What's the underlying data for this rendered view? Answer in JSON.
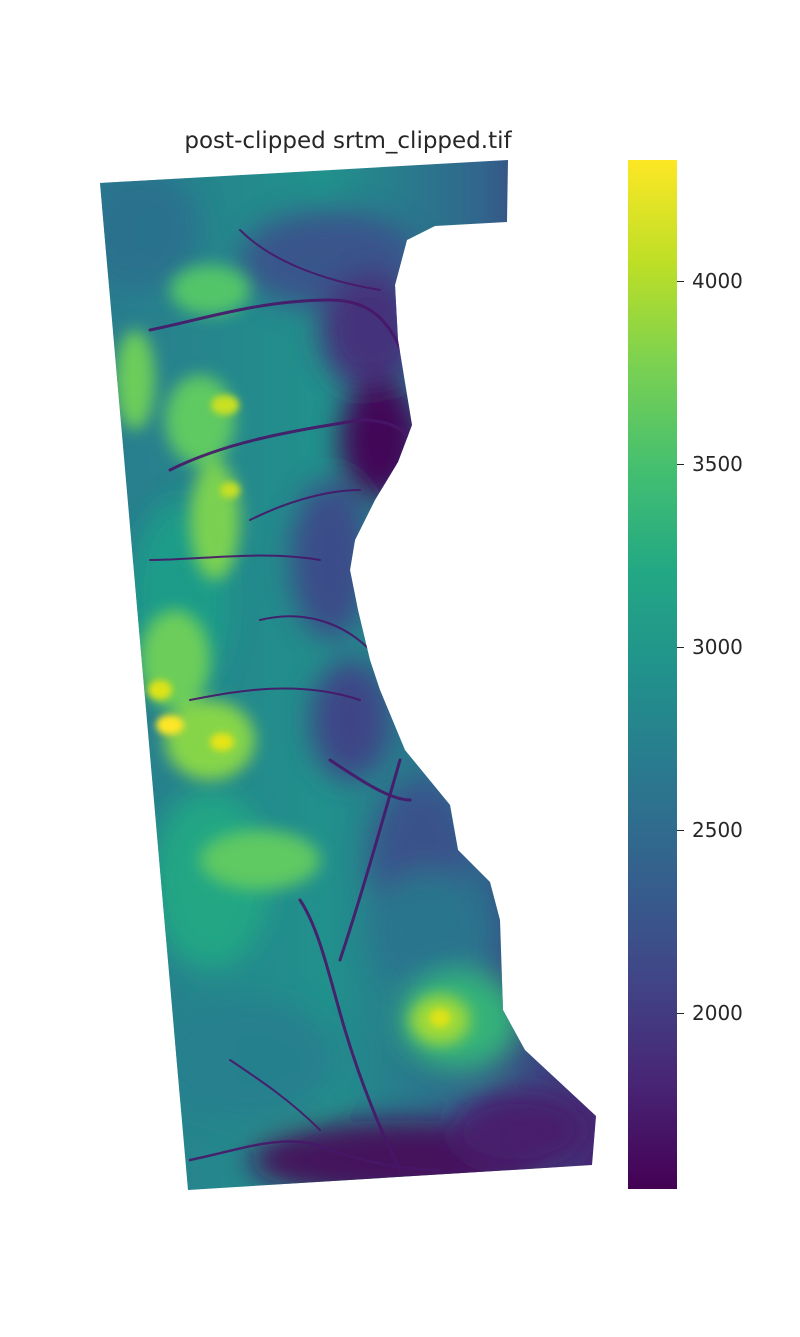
{
  "chart_data": {
    "type": "heatmap",
    "title": "post-clipped srtm_clipped.tif",
    "xlabel": "",
    "ylabel": "",
    "axes_visible": false,
    "grid": false,
    "colormap": "viridis",
    "value_range": [
      1520,
      4330
    ],
    "colorbar": {
      "placement": "right",
      "ticks": [
        {
          "value": 2000,
          "label": "2000"
        },
        {
          "value": 2500,
          "label": "2500"
        },
        {
          "value": 3000,
          "label": "3000"
        },
        {
          "value": 3500,
          "label": "3500"
        },
        {
          "value": 4000,
          "label": "4000"
        }
      ]
    },
    "features": [
      {
        "kind": "ridge",
        "peak_value": 4300
      },
      {
        "kind": "valley",
        "min_value": 1550
      }
    ]
  },
  "colors": {
    "viridis_low": "#440154",
    "viridis_mid": "#21918c",
    "viridis_high": "#fde725",
    "text": "#262626",
    "background": "#ffffff"
  }
}
